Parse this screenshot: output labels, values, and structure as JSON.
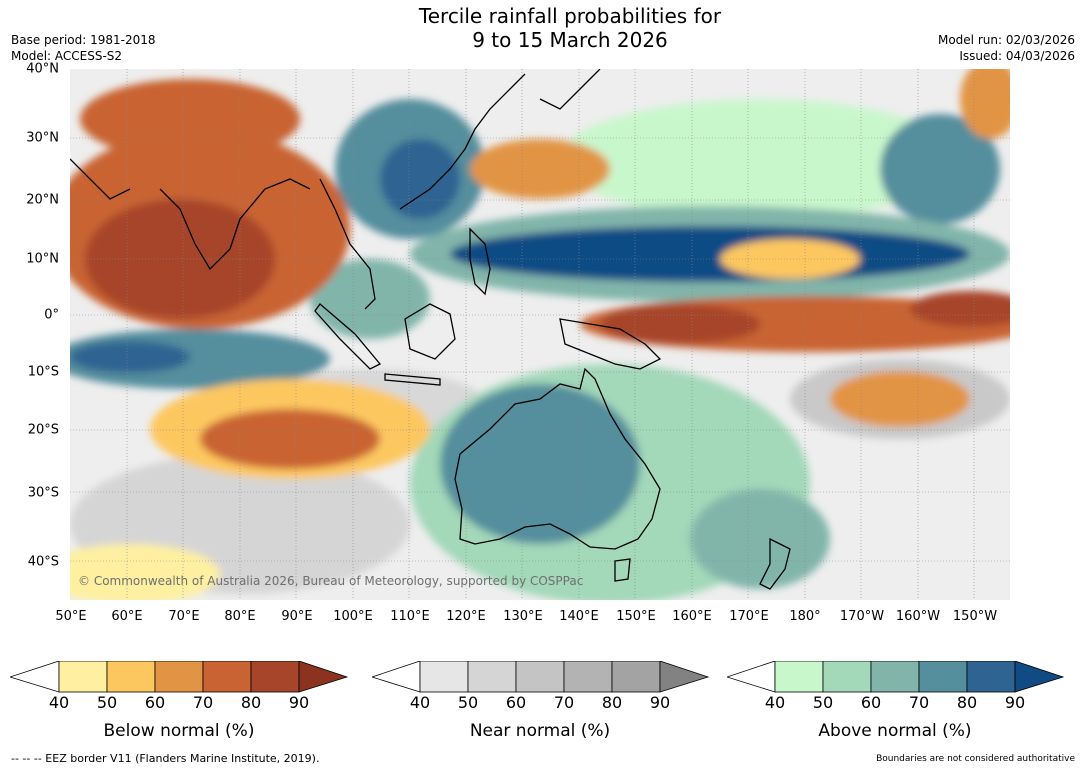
{
  "header": {
    "title_line1": "Tercile rainfall probabilities for",
    "title_line2": "9 to 15 March 2026",
    "base_period": "Base period: 1981-2018",
    "model": "Model: ACCESS-S2",
    "model_run": "Model run: 02/03/2026",
    "issued": "Issued: 04/03/2026"
  },
  "map": {
    "lat_labels": [
      "40°N",
      "30°N",
      "20°N",
      "10°N",
      "0°",
      "10°S",
      "20°S",
      "30°S",
      "40°S"
    ],
    "lon_labels": [
      "50°E",
      "60°E",
      "70°E",
      "80°E",
      "90°E",
      "100°E",
      "110°E",
      "120°E",
      "130°E",
      "140°E",
      "150°E",
      "160°E",
      "170°E",
      "180°",
      "170°W",
      "160°W",
      "150°W"
    ],
    "copyright": "© Commonwealth of Australia 2026, Bureau of Meteorology, supported by COSPPac",
    "regions": [
      {
        "name": "india-below",
        "category": "below",
        "level": 80
      },
      {
        "name": "australia-above",
        "category": "above",
        "level": 70
      },
      {
        "name": "north-pacific-above-band",
        "category": "above",
        "level": 90
      },
      {
        "name": "equatorial-pacific-below-band",
        "category": "below",
        "level": 80
      },
      {
        "name": "indian-ocean-above-band",
        "category": "above",
        "level": 80
      },
      {
        "name": "south-indian-below",
        "category": "below",
        "level": 70
      }
    ]
  },
  "legends": [
    {
      "label": "Below normal (%)",
      "ticks": [
        "40",
        "50",
        "60",
        "70",
        "80",
        "90"
      ],
      "colors": [
        "#ffffff",
        "#fef0a0",
        "#fdc760",
        "#e29445",
        "#c96333",
        "#a7452a",
        "#8c331f"
      ]
    },
    {
      "label": "Near normal (%)",
      "ticks": [
        "40",
        "50",
        "60",
        "70",
        "80",
        "90"
      ],
      "colors": [
        "#ffffff",
        "#e6e6e6",
        "#d5d5d5",
        "#c4c4c4",
        "#b3b3b3",
        "#a3a3a3",
        "#828282"
      ]
    },
    {
      "label": "Above normal (%)",
      "ticks": [
        "40",
        "50",
        "60",
        "70",
        "80",
        "90"
      ],
      "colors": [
        "#ffffff",
        "#c9f7cc",
        "#a3d8b9",
        "#81b5aa",
        "#558e9d",
        "#2e6392",
        "#114b84"
      ]
    }
  ],
  "footer": {
    "eez": "--  --  -- EEZ border V11 (Flanders Marine Institute, 2019).",
    "disclaimer": "Boundaries are not considered authoritative"
  }
}
